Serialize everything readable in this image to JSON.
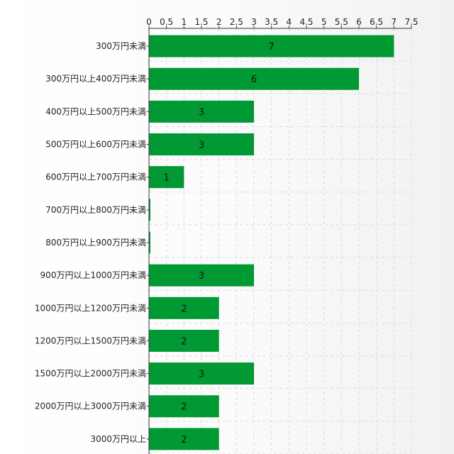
{
  "chart_data": {
    "type": "bar",
    "orientation": "horizontal",
    "title": "",
    "xlabel": "",
    "ylabel": "",
    "categories": [
      "300万円未満",
      "300万円以上400万円未満",
      "400万円以上500万円未満",
      "500万円以上600万円未満",
      "600万円以上700万円未満",
      "700万円以上800万円未満",
      "800万円以上900万円未満",
      "900万円以上1000万円未満",
      "1000万円以上1200万円未満",
      "1200万円以上1500万円未満",
      "1500万円以上2000万円未満",
      "2000万円以上3000万円未満",
      "3000万円以上"
    ],
    "values": [
      7,
      6,
      3,
      3,
      1,
      0,
      0,
      3,
      2,
      2,
      3,
      2,
      2
    ],
    "data_labels": [
      "7",
      "6",
      "3",
      "3",
      "1",
      "",
      "",
      "3",
      "2",
      "2",
      "3",
      "2",
      "2"
    ],
    "xlim": [
      0,
      7.5
    ],
    "xticks": [
      0,
      0.5,
      1,
      1.5,
      2,
      2.5,
      3,
      3.5,
      4,
      4.5,
      5,
      5.5,
      6,
      6.5,
      7,
      7.5
    ],
    "xtick_labels": [
      "0",
      "0.5",
      "1",
      "1.5",
      "2",
      "2.5",
      "3",
      "3.5",
      "4",
      "4.5",
      "5",
      "5.5",
      "6",
      "6.5",
      "7",
      "7.5"
    ],
    "x_axis_position": "top",
    "grid": true,
    "legend": "none",
    "colors": {
      "bar": "#009933",
      "grid": "#d9dcd9",
      "axis": "#333333",
      "text": "#222222",
      "tick_mark": "#cc0000"
    }
  }
}
